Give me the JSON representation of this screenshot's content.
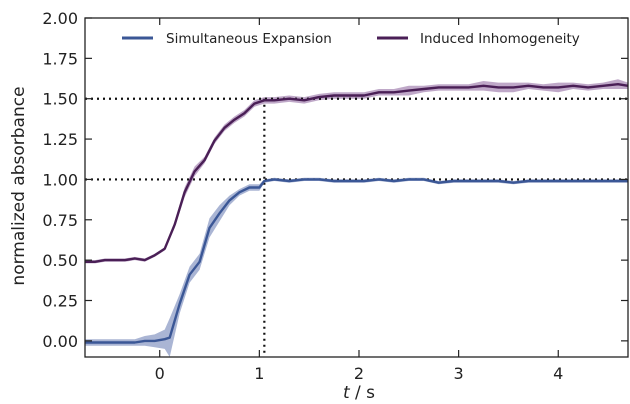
{
  "chart_data": {
    "type": "line",
    "xlabel_italic": "t",
    "xlabel_unit": " / s",
    "ylabel": "normalized absorbance",
    "xlim": [
      -0.75,
      4.7
    ],
    "ylim": [
      -0.1,
      2.0
    ],
    "xticks": [
      0,
      1,
      2,
      3,
      4
    ],
    "yticks": [
      0.0,
      0.25,
      0.5,
      0.75,
      1.0,
      1.25,
      1.5,
      1.75,
      2.0
    ],
    "ytick_labels": [
      "0.00",
      "0.25",
      "0.50",
      "0.75",
      "1.00",
      "1.25",
      "1.50",
      "1.75",
      "2.00"
    ],
    "legend_position": "top",
    "reference_lines": {
      "vertical_x": 1.05,
      "horizontal_y": [
        1.0,
        1.5
      ]
    },
    "series": [
      {
        "name": "Simultaneous Expansion",
        "color": "#3b5796",
        "band_color": "#8e9cc6",
        "x": [
          -0.75,
          -0.65,
          -0.55,
          -0.45,
          -0.35,
          -0.25,
          -0.15,
          -0.05,
          0.05,
          0.1,
          0.2,
          0.3,
          0.4,
          0.5,
          0.6,
          0.7,
          0.8,
          0.9,
          1.0,
          1.05,
          1.15,
          1.3,
          1.45,
          1.6,
          1.75,
          1.9,
          2.05,
          2.2,
          2.35,
          2.5,
          2.65,
          2.8,
          2.95,
          3.1,
          3.25,
          3.4,
          3.55,
          3.7,
          3.85,
          4.0,
          4.15,
          4.3,
          4.45,
          4.6,
          4.7
        ],
        "y": [
          -0.01,
          -0.01,
          -0.01,
          -0.01,
          -0.01,
          -0.01,
          0.0,
          0.0,
          0.01,
          0.02,
          0.23,
          0.41,
          0.49,
          0.7,
          0.79,
          0.87,
          0.92,
          0.95,
          0.95,
          0.99,
          1.0,
          0.99,
          1.0,
          1.0,
          0.99,
          0.99,
          0.99,
          1.0,
          0.99,
          1.0,
          1.0,
          0.98,
          0.99,
          0.99,
          0.99,
          0.99,
          0.98,
          0.99,
          0.99,
          0.99,
          0.99,
          0.99,
          0.99,
          0.99,
          0.99
        ],
        "band": [
          0.02,
          0.02,
          0.02,
          0.02,
          0.02,
          0.02,
          0.03,
          0.04,
          0.06,
          0.12,
          0.06,
          0.05,
          0.05,
          0.06,
          0.05,
          0.03,
          0.02,
          0.02,
          0.02,
          0.01,
          0.01,
          0.01,
          0.01,
          0.01,
          0.01,
          0.01,
          0.01,
          0.01,
          0.01,
          0.01,
          0.01,
          0.01,
          0.01,
          0.01,
          0.01,
          0.01,
          0.01,
          0.01,
          0.01,
          0.01,
          0.01,
          0.01,
          0.01,
          0.01,
          0.01
        ]
      },
      {
        "name": "Induced Inhomogeneity",
        "color": "#4a1f56",
        "band_color": "#a98bb5",
        "x": [
          -0.75,
          -0.65,
          -0.55,
          -0.45,
          -0.35,
          -0.25,
          -0.15,
          -0.05,
          0.05,
          0.15,
          0.25,
          0.35,
          0.45,
          0.55,
          0.65,
          0.75,
          0.85,
          0.95,
          1.05,
          1.15,
          1.3,
          1.45,
          1.6,
          1.75,
          1.9,
          2.05,
          2.2,
          2.35,
          2.5,
          2.65,
          2.8,
          2.95,
          3.1,
          3.25,
          3.4,
          3.55,
          3.7,
          3.85,
          4.0,
          4.15,
          4.3,
          4.45,
          4.6,
          4.7
        ],
        "y": [
          0.49,
          0.49,
          0.5,
          0.5,
          0.5,
          0.51,
          0.5,
          0.53,
          0.57,
          0.72,
          0.92,
          1.05,
          1.12,
          1.24,
          1.32,
          1.37,
          1.41,
          1.47,
          1.49,
          1.49,
          1.5,
          1.49,
          1.51,
          1.52,
          1.52,
          1.52,
          1.54,
          1.54,
          1.55,
          1.56,
          1.57,
          1.57,
          1.57,
          1.58,
          1.57,
          1.57,
          1.58,
          1.57,
          1.57,
          1.58,
          1.57,
          1.58,
          1.59,
          1.58
        ],
        "band": [
          0.01,
          0.01,
          0.01,
          0.01,
          0.01,
          0.01,
          0.01,
          0.01,
          0.01,
          0.02,
          0.03,
          0.03,
          0.02,
          0.02,
          0.02,
          0.02,
          0.02,
          0.02,
          0.02,
          0.02,
          0.02,
          0.02,
          0.02,
          0.02,
          0.02,
          0.02,
          0.02,
          0.02,
          0.03,
          0.02,
          0.02,
          0.02,
          0.02,
          0.03,
          0.03,
          0.03,
          0.02,
          0.02,
          0.03,
          0.02,
          0.02,
          0.02,
          0.03,
          0.02
        ]
      }
    ]
  }
}
